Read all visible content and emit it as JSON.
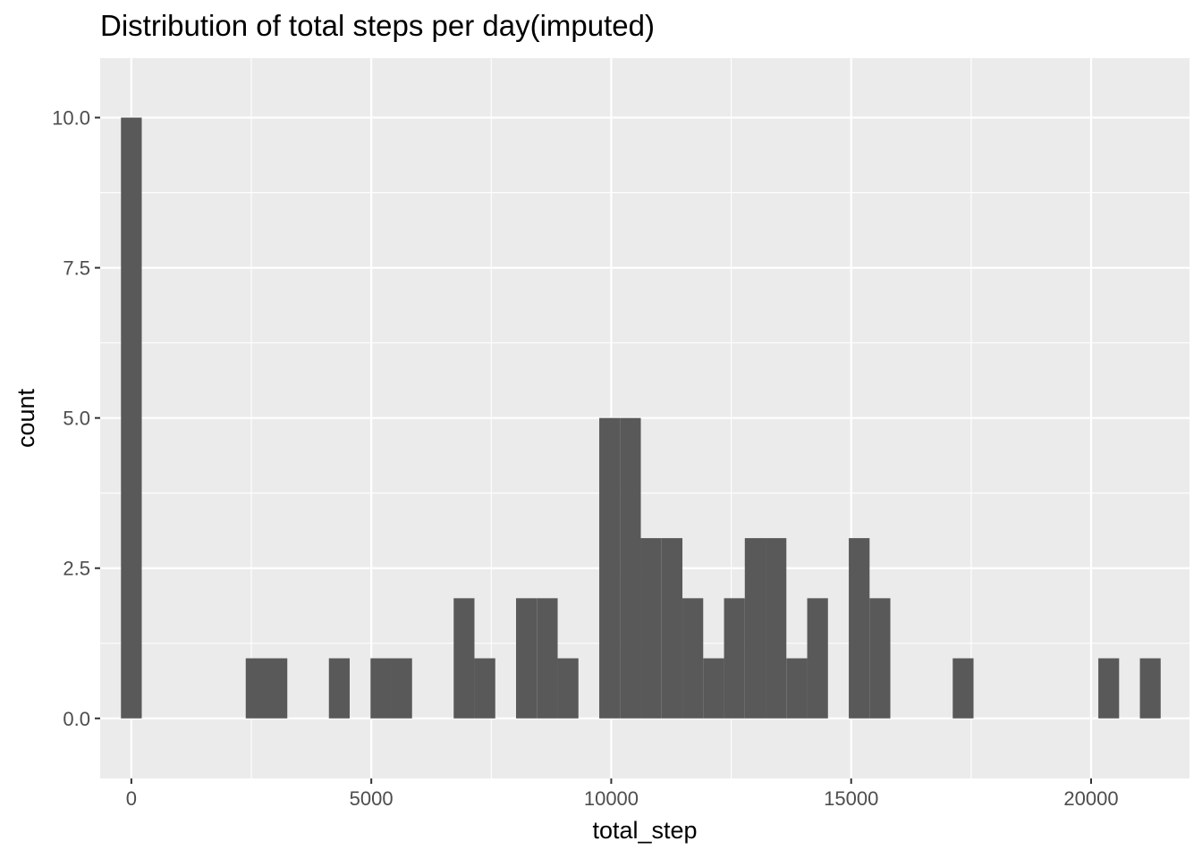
{
  "chart_data": {
    "type": "bar",
    "subtype": "histogram",
    "title": "Distribution of total steps per day(imputed)",
    "xlabel": "total_step",
    "ylabel": "count",
    "xlim": [
      -650,
      22050
    ],
    "ylim": [
      -1.0,
      10.99
    ],
    "x_ticks": [
      0,
      5000,
      10000,
      15000,
      20000
    ],
    "x_tick_labels": [
      "0",
      "5000",
      "10000",
      "15000",
      "20000"
    ],
    "y_ticks": [
      0,
      2.5,
      5,
      7.5,
      10
    ],
    "y_tick_labels": [
      "0.0",
      "2.5",
      "5.0",
      "7.5",
      "10.0"
    ],
    "bin_width": 433,
    "bins": [
      {
        "x": 0,
        "count": 10
      },
      {
        "x": 2600,
        "count": 1
      },
      {
        "x": 3033,
        "count": 1
      },
      {
        "x": 4333,
        "count": 1
      },
      {
        "x": 5200,
        "count": 1
      },
      {
        "x": 5633,
        "count": 1
      },
      {
        "x": 6933,
        "count": 2
      },
      {
        "x": 7367,
        "count": 1
      },
      {
        "x": 8233,
        "count": 2
      },
      {
        "x": 8667,
        "count": 2
      },
      {
        "x": 9100,
        "count": 1
      },
      {
        "x": 9967,
        "count": 5
      },
      {
        "x": 10400,
        "count": 5
      },
      {
        "x": 10833,
        "count": 3
      },
      {
        "x": 11267,
        "count": 3
      },
      {
        "x": 11700,
        "count": 2
      },
      {
        "x": 12133,
        "count": 1
      },
      {
        "x": 12567,
        "count": 2
      },
      {
        "x": 13000,
        "count": 3
      },
      {
        "x": 13433,
        "count": 3
      },
      {
        "x": 13867,
        "count": 1
      },
      {
        "x": 14300,
        "count": 2
      },
      {
        "x": 15167,
        "count": 3
      },
      {
        "x": 15600,
        "count": 2
      },
      {
        "x": 17333,
        "count": 1
      },
      {
        "x": 20367,
        "count": 1
      },
      {
        "x": 21233,
        "count": 1
      }
    ],
    "grid": true,
    "legend": "none",
    "colors": {
      "panel_background": "#ebebeb",
      "grid": "#ffffff",
      "bar_fill": "#595959"
    }
  }
}
